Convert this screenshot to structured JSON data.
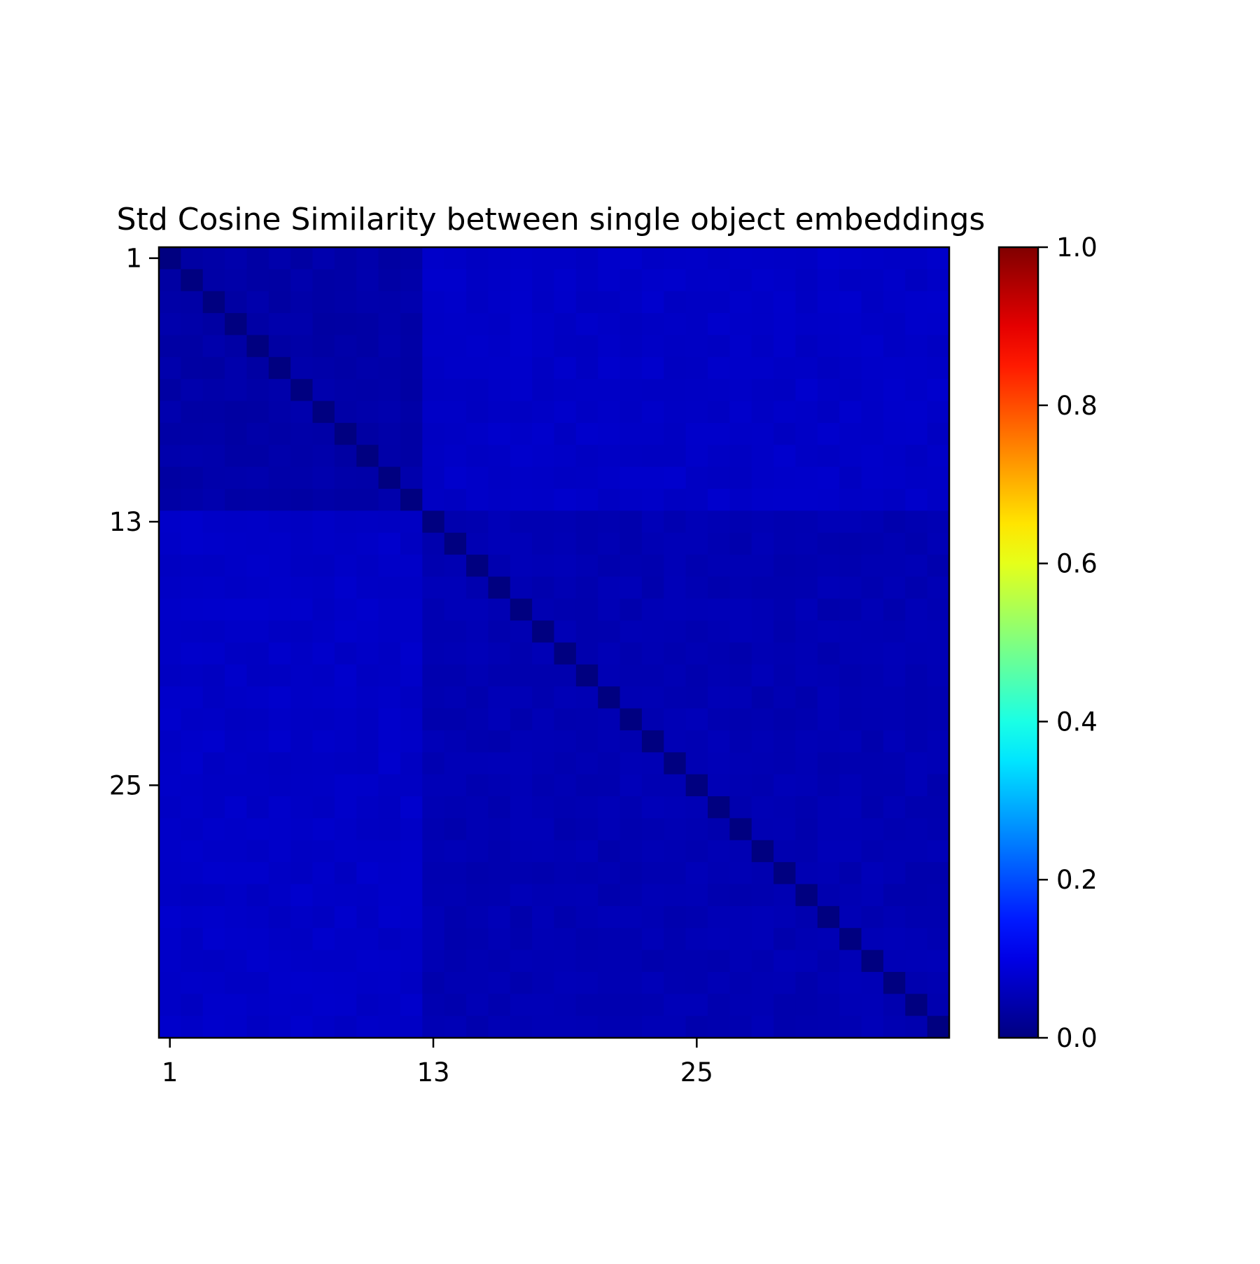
{
  "chart_data": {
    "type": "heatmap",
    "title": "Std Cosine Similarity between single object embeddings",
    "n": 36,
    "x_tick_labels": [
      "1",
      "13",
      "25"
    ],
    "x_tick_indices": [
      1,
      13,
      25
    ],
    "y_tick_labels": [
      "1",
      "13",
      "25"
    ],
    "y_tick_indices": [
      1,
      13,
      25
    ],
    "colormap": "jet",
    "color_range": [
      0.0,
      1.0
    ],
    "colorbar_ticks": [
      "0.0",
      "0.2",
      "0.4",
      "0.6",
      "0.8",
      "1.0"
    ],
    "colorbar_tick_values": [
      0.0,
      0.2,
      0.4,
      0.6,
      0.8,
      1.0
    ],
    "groups": {
      "block_boundary": 12,
      "within_first_block": 0.04,
      "within_second_block": 0.05,
      "between_blocks": 0.07,
      "diagonal": 0.0
    },
    "grid": false,
    "legend": "colorbar-right"
  }
}
